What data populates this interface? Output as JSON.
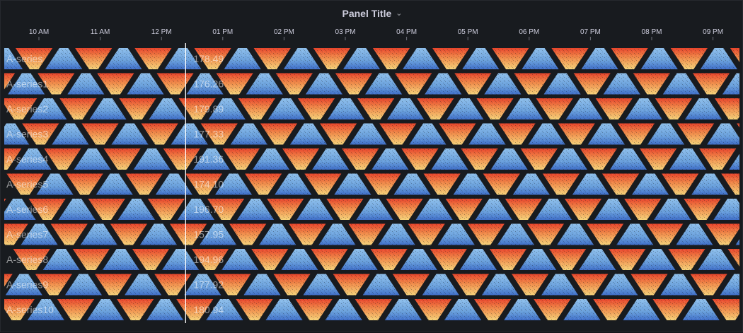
{
  "panel": {
    "title": "Panel Title"
  },
  "chart_data": {
    "type": "heatmap",
    "title": "Panel Title",
    "x_ticks": [
      "10 AM",
      "11 AM",
      "12 PM",
      "01 PM",
      "02 PM",
      "03 PM",
      "04 PM",
      "05 PM",
      "06 PM",
      "07 PM",
      "08 PM",
      "09 PM"
    ],
    "hover_time_fraction": 0.2467,
    "color_scale": {
      "low": "#3f6fc9",
      "mid_low": "#8ab8e6",
      "mid_high": "#f5d27a",
      "high": "#e8452c"
    },
    "series": [
      {
        "name": "A-series",
        "value": "178.49",
        "period": 0.081
      },
      {
        "name": "A-series1",
        "value": "176.26",
        "period": 0.081
      },
      {
        "name": "A-series2",
        "value": "179.89",
        "period": 0.081
      },
      {
        "name": "A-series3",
        "value": "177.33",
        "period": 0.081
      },
      {
        "name": "A-series4",
        "value": "191.36",
        "period": 0.081
      },
      {
        "name": "A-series5",
        "value": "174.10",
        "period": 0.081
      },
      {
        "name": "A-series6",
        "value": "196.70",
        "period": 0.081
      },
      {
        "name": "A-series7",
        "value": "157.95",
        "period": 0.081
      },
      {
        "name": "A-series8",
        "value": "194.96",
        "period": 0.081
      },
      {
        "name": "A-series9",
        "value": "177.92",
        "period": 0.081
      },
      {
        "name": "A-series10",
        "value": "180.94",
        "period": 0.081
      }
    ]
  }
}
